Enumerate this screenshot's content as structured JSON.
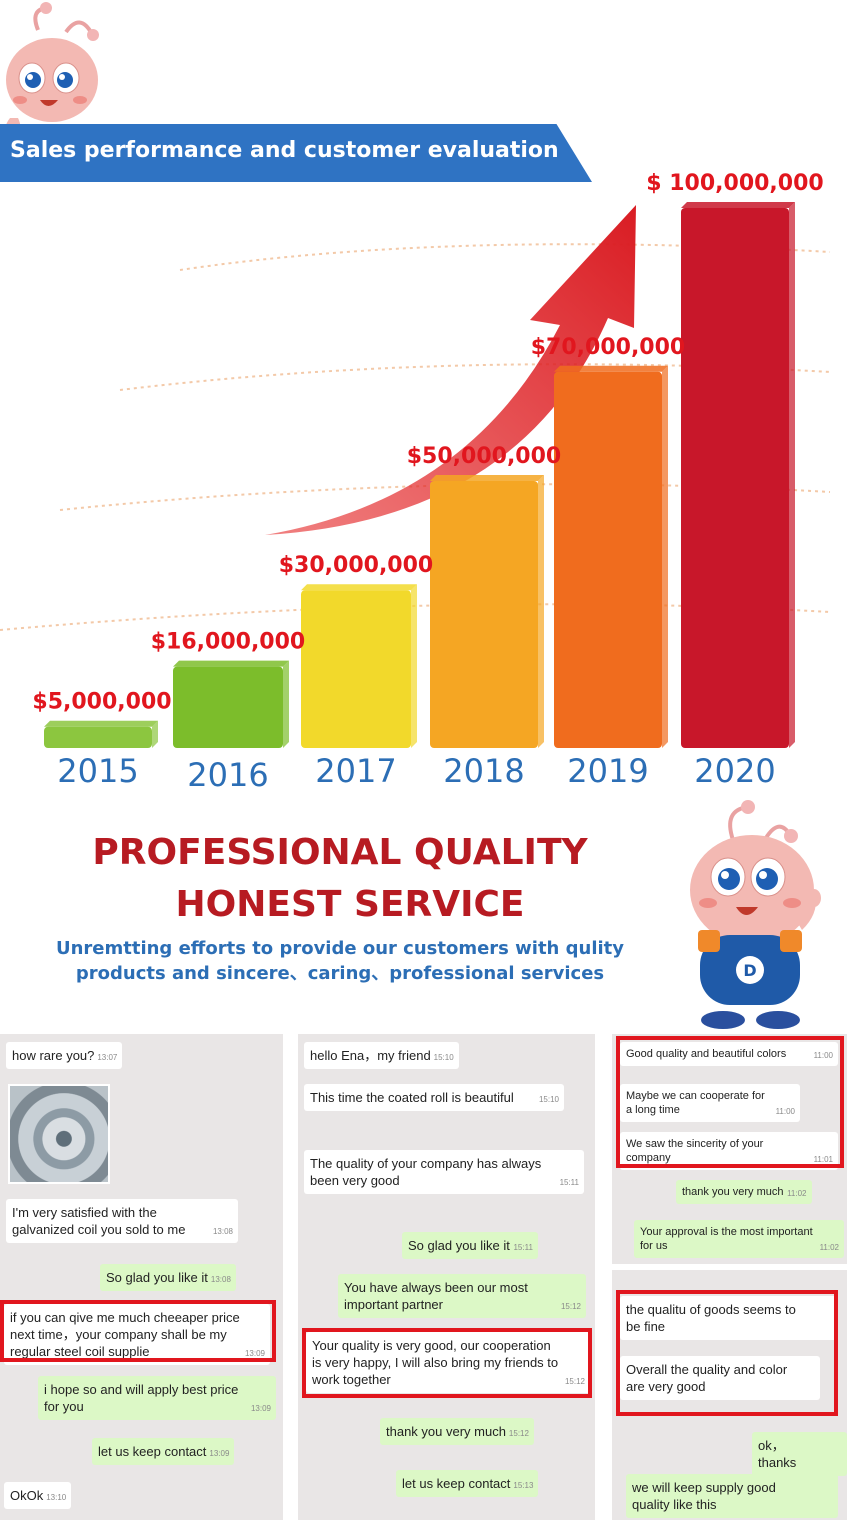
{
  "header": {
    "title": "Sales performance and customer evaluation"
  },
  "chart_data": {
    "type": "bar",
    "categories": [
      "2015",
      "2016",
      "2017",
      "2018",
      "2019",
      "2020"
    ],
    "values": [
      5000000,
      16000000,
      30000000,
      50000000,
      70000000,
      100000000
    ],
    "value_labels": [
      "$5,000,000",
      "$16,000,000",
      "$30,000,000",
      "$50,000,000",
      "$70,000,000",
      "$ 100,000,000"
    ],
    "title": "",
    "xlabel": "",
    "ylabel": "",
    "ylim": [
      0,
      100000000
    ],
    "grid": true,
    "legend": "none",
    "colors": [
      "#8cc63f",
      "#7cbd2b",
      "#f2d92b",
      "#f5a623",
      "#f06c1e",
      "#c8172a"
    ]
  },
  "slogan": {
    "line1": "PROFESSIONAL QUALITY",
    "line2": "HONEST SERVICE",
    "tagline_line1": "Unremtting  efforts to provide our customers with qulity",
    "tagline_line2": "products and sincere、caring、professional services"
  },
  "chats": {
    "panel1": {
      "messages": [
        {
          "text": "how rare you?",
          "time": "13:07"
        },
        {
          "text": "I'm very satisfied with the galvanized coil you sold to me",
          "time": "13:08"
        },
        {
          "text": "So glad you like it",
          "time": "13:08"
        },
        {
          "text": "if you can qive me much cheeaper price next time，your company shall be my regular steel coil supplie",
          "time": "13:09"
        },
        {
          "text": "i hope so and will apply best price for you",
          "time": "13:09"
        },
        {
          "text": "let us keep contact",
          "time": "13:09"
        },
        {
          "text": "OkOk",
          "time": "13:10"
        }
      ]
    },
    "panel2": {
      "messages": [
        {
          "text": "hello Ena，my  friend",
          "time": "15:10"
        },
        {
          "text": "This time the coated roll is beautiful",
          "time": "15:10"
        },
        {
          "text": "The quality of your company has always been very good",
          "time": "15:11"
        },
        {
          "text": "So glad you like it",
          "time": "15:11"
        },
        {
          "text": "You have always been our most important partner",
          "time": "15:12"
        },
        {
          "text": "Your quality is very good, our cooperation is very happy, I will also bring my friends to work together",
          "time": "15:12"
        },
        {
          "text": "thank you very much",
          "time": "15:12"
        },
        {
          "text": "let us keep contact",
          "time": "15:13"
        }
      ]
    },
    "panel3": {
      "messages": [
        {
          "text": "Good quality and beautiful colors",
          "time": "11:00"
        },
        {
          "text": "Maybe we can cooperate for a long time",
          "time": "11:00"
        },
        {
          "text": "We saw the sincerity of your company",
          "time": "11:01"
        },
        {
          "text": "thank you very much",
          "time": "11:02"
        },
        {
          "text": "Your approval is the most important for us",
          "time": "11:02"
        }
      ]
    },
    "panel4": {
      "messages": [
        {
          "text": "the qualitu of goods seems to be fine",
          "time": ""
        },
        {
          "text": "Overall the quality and color are very good",
          "time": ""
        },
        {
          "text": "ok，thanks",
          "time": ""
        },
        {
          "text": "we will keep supply good quality like this",
          "time": ""
        }
      ]
    }
  }
}
